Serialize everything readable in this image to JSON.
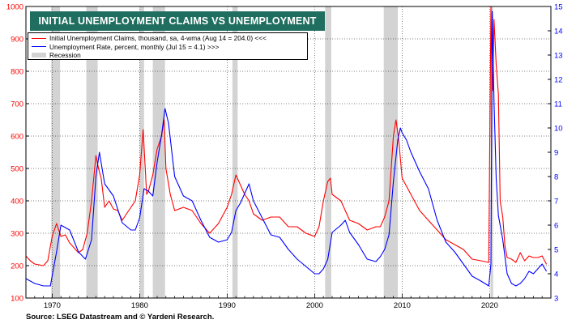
{
  "header": {
    "title": "INITIAL UNEMPLOYMENT CLAIMS VS UNEMPLOYMENT RATE"
  },
  "legend": {
    "claims_label": "Initial Unemployment Claims, thousand,  sa, 4-wma (Aug 14 = 204.0) <<<",
    "rate_label": "Unemployment Rate, percent, monthly (Jul 15 = 4.1) >>>",
    "recession_label": "Recession"
  },
  "footer": {
    "source": "Source: LSEG Datastream and © Yardeni Research."
  },
  "colors": {
    "claims": "#ff0000",
    "rate": "#0000ff",
    "recession": "#d3d3d3",
    "title_bg": "#1f6e5f"
  },
  "chart_data": {
    "type": "line",
    "title": "INITIAL UNEMPLOYMENT CLAIMS VS UNEMPLOYMENT RATE",
    "xlim": [
      1967,
      2027
    ],
    "x_ticks": [
      "1970",
      "1980",
      "1990",
      "2000",
      "2010",
      "2020"
    ],
    "ylim_left": [
      100,
      1000
    ],
    "y_ticks_left": [
      "100",
      "200",
      "300",
      "400",
      "500",
      "600",
      "700",
      "800",
      "900",
      "1000"
    ],
    "ylim_right": [
      3,
      15
    ],
    "y_ticks_right": [
      "3",
      "4",
      "5",
      "6",
      "7",
      "8",
      "9",
      "10",
      "11",
      "12",
      "13",
      "14",
      "15"
    ],
    "grid": true,
    "legend_position": "top-left",
    "recessions": [
      [
        1969.9,
        1970.9
      ],
      [
        1973.9,
        1975.2
      ],
      [
        1980.0,
        1980.5
      ],
      [
        1981.5,
        1982.9
      ],
      [
        1990.6,
        1991.2
      ],
      [
        2001.2,
        2001.9
      ],
      [
        2007.9,
        2009.5
      ],
      [
        2020.1,
        2020.4
      ]
    ],
    "series": [
      {
        "name": "Initial Unemployment Claims, thousand,  sa, 4-wma (Aug 14 = 204.0) <<<",
        "axis": "left",
        "color": "#ff0000",
        "x": [
          1967.0,
          1967.5,
          1968.0,
          1969.0,
          1969.5,
          1970.0,
          1970.5,
          1971.0,
          1971.5,
          1972.0,
          1973.0,
          1973.5,
          1974.0,
          1974.5,
          1975.0,
          1975.3,
          1975.6,
          1976.0,
          1976.5,
          1977.0,
          1977.5,
          1978.0,
          1978.5,
          1979.0,
          1979.5,
          1980.0,
          1980.4,
          1980.8,
          1981.0,
          1981.5,
          1982.0,
          1982.5,
          1982.8,
          1983.0,
          1983.5,
          1984.0,
          1985.0,
          1986.0,
          1987.0,
          1988.0,
          1989.0,
          1990.0,
          1990.5,
          1991.0,
          1991.5,
          1992.0,
          1992.5,
          1993.0,
          1994.0,
          1995.0,
          1996.0,
          1997.0,
          1998.0,
          1999.0,
          2000.0,
          2000.5,
          2001.0,
          2001.5,
          2001.8,
          2002.0,
          2003.0,
          2003.5,
          2004.0,
          2005.0,
          2006.0,
          2007.0,
          2007.5,
          2008.0,
          2008.5,
          2009.0,
          2009.3,
          2009.6,
          2010.0,
          2011.0,
          2012.0,
          2013.0,
          2014.0,
          2015.0,
          2016.0,
          2017.0,
          2018.0,
          2019.0,
          2019.9,
          2020.15,
          2020.25,
          2020.35,
          2020.5,
          2020.75,
          2021.0,
          2021.2,
          2021.5,
          2021.75,
          2022.0,
          2022.5,
          2023.0,
          2023.5,
          2024.0,
          2024.5,
          2025.0,
          2025.5,
          2026.0,
          2026.5
        ],
        "values": [
          230,
          215,
          205,
          200,
          215,
          290,
          330,
          290,
          295,
          270,
          240,
          250,
          300,
          400,
          540,
          500,
          470,
          380,
          400,
          375,
          370,
          340,
          360,
          380,
          400,
          480,
          620,
          420,
          430,
          480,
          560,
          600,
          650,
          500,
          420,
          370,
          380,
          370,
          330,
          300,
          330,
          380,
          420,
          480,
          450,
          420,
          400,
          360,
          340,
          350,
          350,
          320,
          320,
          300,
          290,
          320,
          400,
          460,
          470,
          420,
          400,
          370,
          340,
          330,
          310,
          320,
          320,
          350,
          400,
          600,
          650,
          590,
          470,
          420,
          370,
          340,
          310,
          280,
          265,
          250,
          220,
          215,
          210,
          1000,
          800,
          740,
          960,
          820,
          730,
          400,
          350,
          260,
          225,
          220,
          210,
          240,
          215,
          230,
          225,
          225,
          230,
          204
        ]
      },
      {
        "name": "Unemployment Rate, percent, monthly (Jul 15 = 4.1) >>>",
        "axis": "right",
        "color": "#0000ff",
        "x": [
          1967.0,
          1968.0,
          1969.0,
          1969.8,
          1970.5,
          1971.0,
          1972.0,
          1973.0,
          1973.8,
          1974.5,
          1975.0,
          1975.4,
          1976.0,
          1977.0,
          1978.0,
          1979.0,
          1979.5,
          1980.0,
          1980.5,
          1981.0,
          1981.5,
          1982.0,
          1982.5,
          1982.9,
          1983.3,
          1984.0,
          1985.0,
          1986.0,
          1987.0,
          1988.0,
          1989.0,
          1990.0,
          1990.5,
          1991.0,
          1991.5,
          1992.0,
          1992.5,
          1993.0,
          1994.0,
          1995.0,
          1996.0,
          1997.0,
          1998.0,
          1999.0,
          2000.0,
          2000.5,
          2001.0,
          2001.5,
          2002.0,
          2003.0,
          2003.5,
          2004.0,
          2005.0,
          2006.0,
          2007.0,
          2007.5,
          2008.0,
          2008.5,
          2009.0,
          2009.5,
          2009.8,
          2010.0,
          2010.5,
          2011.0,
          2012.0,
          2013.0,
          2014.0,
          2015.0,
          2016.0,
          2017.0,
          2018.0,
          2019.0,
          2019.9,
          2020.15,
          2020.3,
          2020.5,
          2020.75,
          2021.0,
          2021.5,
          2022.0,
          2022.5,
          2023.0,
          2023.5,
          2024.0,
          2024.5,
          2025.0,
          2025.5,
          2026.0,
          2026.5
        ],
        "values": [
          3.8,
          3.6,
          3.5,
          3.5,
          4.9,
          6.0,
          5.8,
          4.9,
          4.6,
          5.4,
          8.0,
          9.0,
          7.7,
          7.2,
          6.1,
          5.8,
          5.8,
          6.3,
          7.5,
          7.4,
          7.2,
          8.6,
          9.7,
          10.8,
          10.2,
          8.0,
          7.2,
          7.0,
          6.2,
          5.5,
          5.3,
          5.4,
          5.7,
          6.6,
          6.9,
          7.3,
          7.7,
          7.0,
          6.3,
          5.6,
          5.5,
          5.0,
          4.6,
          4.3,
          4.0,
          4.0,
          4.2,
          4.6,
          5.7,
          6.0,
          6.2,
          5.7,
          5.2,
          4.6,
          4.5,
          4.7,
          5.0,
          5.6,
          7.8,
          9.5,
          10.0,
          9.8,
          9.5,
          9.0,
          8.2,
          7.5,
          6.2,
          5.3,
          4.9,
          4.4,
          3.9,
          3.7,
          3.5,
          4.4,
          14.8,
          11.1,
          7.9,
          6.4,
          5.4,
          4.0,
          3.6,
          3.5,
          3.6,
          3.8,
          4.1,
          4.0,
          4.2,
          4.4,
          4.1
        ]
      }
    ]
  }
}
